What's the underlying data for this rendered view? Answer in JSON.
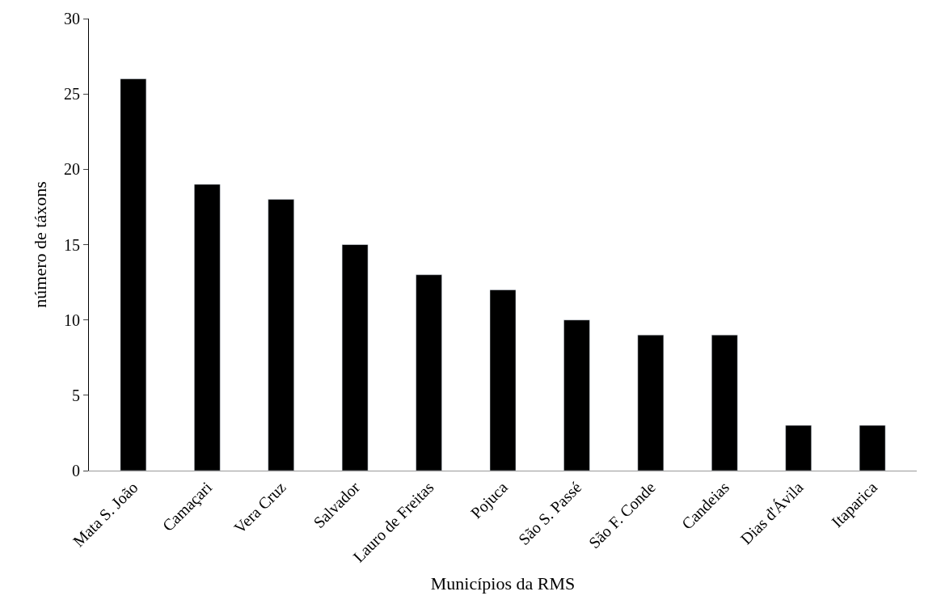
{
  "chart_data": {
    "type": "bar",
    "xlabel": "Municípios da RMS",
    "ylabel": "número de táxons",
    "categories": [
      "Mata S. João",
      "Camaçari",
      "Vera Cruz",
      "Salvador",
      "Lauro de Freitas",
      "Pojuca",
      "São S. Passé",
      "São F. Conde",
      "Candeias",
      "Dias d'Ávila",
      "Itaparica"
    ],
    "values": [
      26,
      19,
      18,
      15,
      13,
      12,
      10,
      9,
      9,
      3,
      3
    ],
    "color": "#000000",
    "ylim": [
      0,
      30
    ],
    "yticks": [
      0,
      5,
      10,
      15,
      20,
      25,
      30
    ]
  }
}
